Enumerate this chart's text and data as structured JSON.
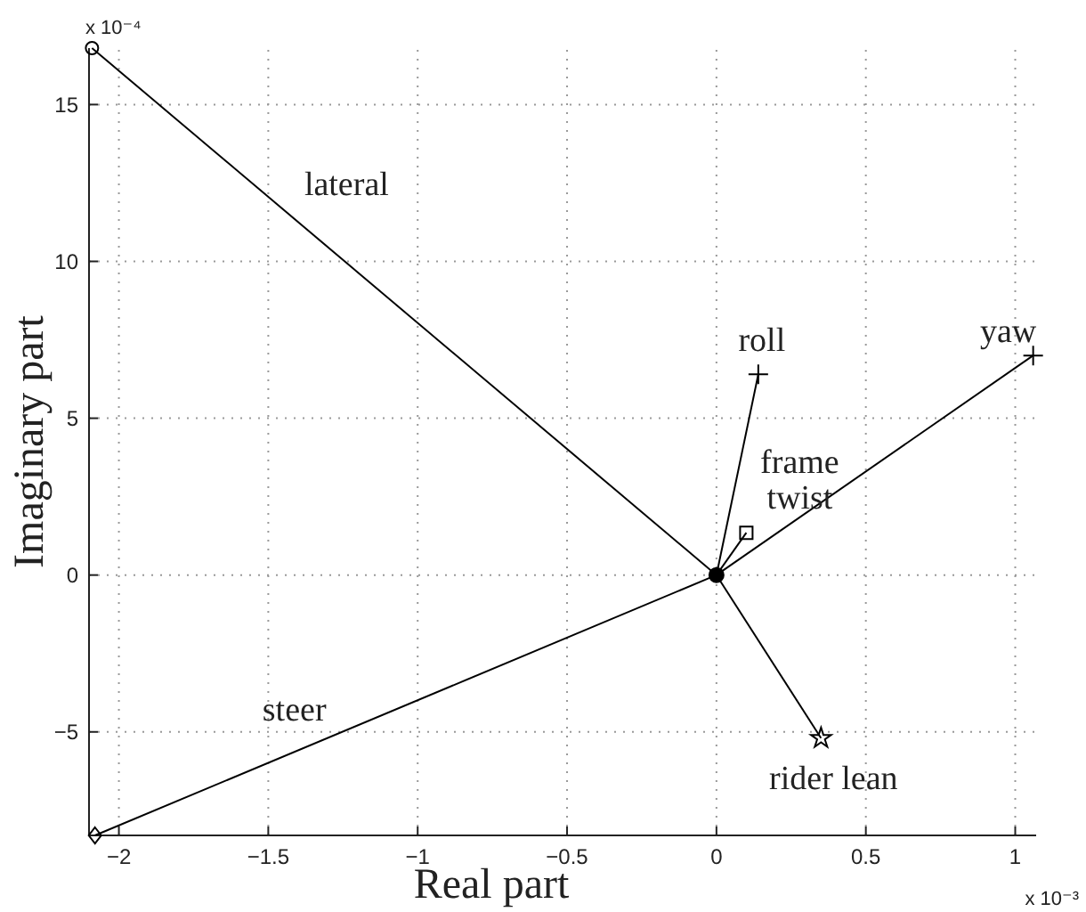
{
  "chart_data": {
    "type": "line",
    "xlabel": "Real part",
    "ylabel": "Imaginary part",
    "xlim": [
      -2.1,
      1.07
    ],
    "ylim": [
      -8.3,
      16.8
    ],
    "xticks": [
      -2,
      -1.5,
      -1,
      -0.5,
      0,
      0.5,
      1
    ],
    "yticks": [
      -5,
      0,
      5,
      10,
      15
    ],
    "grid": true,
    "line_style": "solid",
    "annotations": [
      "x 10⁻⁴",
      "x 10⁻³"
    ],
    "series": [
      {
        "name": "lateral",
        "color": "#000000",
        "marker": "circle",
        "x": [
          0,
          -2.09
        ],
        "values": [
          0,
          16.8
        ]
      },
      {
        "name": "steer",
        "color": "#000000",
        "marker": "diamond",
        "x": [
          0,
          -2.08
        ],
        "values": [
          0,
          -8.3
        ]
      },
      {
        "name": "roll",
        "color": "#000000",
        "marker": "cross",
        "x": [
          0,
          0.14
        ],
        "values": [
          0,
          6.4
        ]
      },
      {
        "name": "yaw",
        "color": "#000000",
        "marker": "cross",
        "x": [
          0,
          1.06
        ],
        "values": [
          0,
          7.0
        ]
      },
      {
        "name": "frame twist",
        "color": "#000000",
        "marker": "square",
        "x": [
          0,
          0.1
        ],
        "values": [
          0,
          1.35
        ]
      },
      {
        "name": "rider lean",
        "color": "#000000",
        "marker": "star",
        "x": [
          0,
          0.35
        ],
        "values": [
          0,
          -5.2
        ]
      },
      {
        "type": "scatter",
        "color": "#000000",
        "marker": "circle",
        "x": [
          0
        ],
        "values": [
          0
        ]
      }
    ]
  }
}
